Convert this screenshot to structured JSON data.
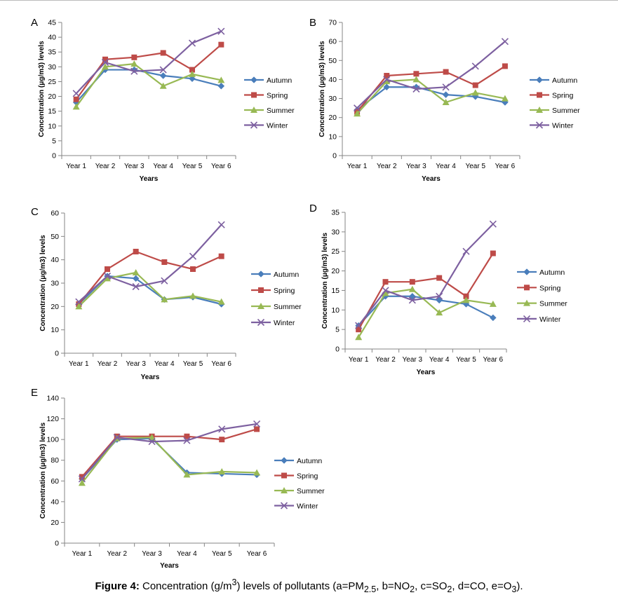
{
  "figure": {
    "caption_label": "Figure 4:",
    "caption_parts": {
      "p1": " Concentration (g/m",
      "sup": "3",
      "p2": ") levels of pollutants (a=PM",
      "sub1": "2.5",
      "p3": ", b=NO",
      "sub2": "2",
      "p4": ", c=SO",
      "sub3": "2",
      "p5": ", d=CO, e=O",
      "sub4": "3",
      "p6": ")."
    }
  },
  "colors": {
    "Autumn": "#4a7ebb",
    "Spring": "#be4b48",
    "Summer": "#98b954",
    "Winter": "#7d60a0",
    "axis": "#868686",
    "text": "#000000"
  },
  "chart_data": [
    {
      "panel": "A",
      "type": "line",
      "categories": [
        "Year 1",
        "Year 2",
        "Year 3",
        "Year 4",
        "Year 5",
        "Year 6"
      ],
      "xlabel": "Years",
      "ylabel": "Concentration (μg/m3) levels",
      "ylim": [
        0,
        45
      ],
      "yticks": [
        0,
        5,
        10,
        15,
        20,
        25,
        30,
        35,
        40,
        45
      ],
      "legend_position": "right",
      "grid": false,
      "series": [
        {
          "name": "Autumn",
          "marker": "diamond",
          "values": [
            18,
            29,
            29,
            27,
            26,
            23.5
          ]
        },
        {
          "name": "Spring",
          "marker": "square",
          "values": [
            19,
            32.5,
            33.2,
            34.7,
            29,
            37.5
          ]
        },
        {
          "name": "Summer",
          "marker": "triangle",
          "values": [
            16.5,
            30,
            31,
            23.5,
            27.5,
            25.5
          ]
        },
        {
          "name": "Winter",
          "marker": "x",
          "values": [
            21,
            31.5,
            28.5,
            29,
            38,
            42
          ]
        }
      ]
    },
    {
      "panel": "B",
      "type": "line",
      "categories": [
        "Year 1",
        "Year 2",
        "Year 3",
        "Year 4",
        "Year 5",
        "Year 6"
      ],
      "xlabel": "Years",
      "ylabel": "Concentration (μg/m3) levels",
      "ylim": [
        0,
        70
      ],
      "yticks": [
        0,
        10,
        20,
        30,
        40,
        50,
        60,
        70
      ],
      "legend_position": "right",
      "grid": false,
      "series": [
        {
          "name": "Autumn",
          "marker": "diamond",
          "values": [
            24,
            36,
            36,
            32,
            31,
            28
          ]
        },
        {
          "name": "Spring",
          "marker": "square",
          "values": [
            23,
            42,
            43,
            44,
            37,
            47
          ]
        },
        {
          "name": "Summer",
          "marker": "triangle",
          "values": [
            22,
            39,
            40,
            28,
            33,
            30
          ]
        },
        {
          "name": "Winter",
          "marker": "x",
          "values": [
            25,
            40,
            35,
            36,
            47,
            60
          ]
        }
      ]
    },
    {
      "panel": "C",
      "type": "line",
      "categories": [
        "Year 1",
        "Year 2",
        "Year 3",
        "Year 4",
        "Year 5",
        "Year 6"
      ],
      "xlabel": "Years",
      "ylabel": "Concentration (μg/m3) levels",
      "ylim": [
        0,
        60
      ],
      "yticks": [
        0,
        10,
        20,
        30,
        40,
        50,
        60
      ],
      "legend_position": "right",
      "grid": false,
      "series": [
        {
          "name": "Autumn",
          "marker": "diamond",
          "values": [
            21,
            33,
            32,
            23,
            24,
            21
          ]
        },
        {
          "name": "Spring",
          "marker": "square",
          "values": [
            21,
            36,
            43.5,
            39,
            36,
            41.5
          ]
        },
        {
          "name": "Summer",
          "marker": "triangle",
          "values": [
            20,
            32,
            34.5,
            23,
            24.5,
            22
          ]
        },
        {
          "name": "Winter",
          "marker": "x",
          "values": [
            22,
            33,
            28.5,
            31,
            41.5,
            55
          ]
        }
      ]
    },
    {
      "panel": "D",
      "type": "line",
      "categories": [
        "Year 1",
        "Year 2",
        "Year 3",
        "Year 4",
        "Year 5",
        "Year 6"
      ],
      "xlabel": "Years",
      "ylabel": "Concentration (μg/m3) levels",
      "ylim": [
        0,
        35
      ],
      "yticks": [
        0,
        5,
        10,
        15,
        20,
        25,
        30,
        35
      ],
      "legend_position": "right",
      "grid": false,
      "series": [
        {
          "name": "Autumn",
          "marker": "diamond",
          "values": [
            6,
            13.5,
            13.5,
            12.5,
            11.5,
            8
          ]
        },
        {
          "name": "Spring",
          "marker": "square",
          "values": [
            5,
            17.2,
            17.2,
            18.2,
            13.5,
            24.5
          ]
        },
        {
          "name": "Summer",
          "marker": "triangle",
          "values": [
            3,
            14.3,
            15.3,
            9.3,
            12.5,
            11.5
          ]
        },
        {
          "name": "Winter",
          "marker": "x",
          "values": [
            6,
            15,
            12.5,
            13.5,
            25,
            32
          ]
        }
      ]
    },
    {
      "panel": "E",
      "type": "line",
      "categories": [
        "Year 1",
        "Year 2",
        "Year 3",
        "Year 4",
        "Year 5",
        "Year 6"
      ],
      "xlabel": "Years",
      "ylabel": "Concentration (μg/m3) levels",
      "ylim": [
        0,
        140
      ],
      "yticks": [
        0,
        20,
        40,
        60,
        80,
        100,
        120,
        140
      ],
      "legend_position": "right",
      "grid": false,
      "series": [
        {
          "name": "Autumn",
          "marker": "diamond",
          "values": [
            62,
            100,
            101,
            68,
            67,
            66
          ]
        },
        {
          "name": "Spring",
          "marker": "square",
          "values": [
            64,
            103,
            103,
            103,
            100,
            110
          ]
        },
        {
          "name": "Summer",
          "marker": "triangle",
          "values": [
            58,
            101,
            102,
            66,
            69,
            68
          ]
        },
        {
          "name": "Winter",
          "marker": "x",
          "values": [
            62,
            102,
            98,
            99,
            110,
            115
          ]
        }
      ]
    }
  ]
}
